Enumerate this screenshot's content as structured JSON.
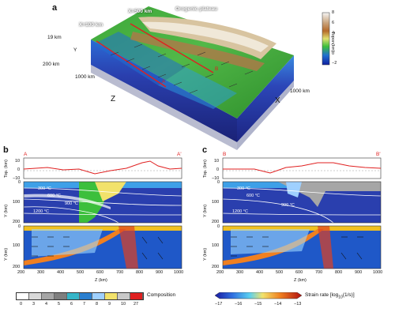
{
  "panel_a": {
    "label": "a",
    "plateau": "Orogenic plateau",
    "x100": "X=100 km",
    "x500": "X=500 km",
    "dim_19": "19 km",
    "dim_y": "Y",
    "dim_200": "200 km",
    "dim_1000a": "1000 km",
    "dim_1000b": "1000 km",
    "axis_z": "Z",
    "axis_x": "X",
    "mark_a": "A",
    "mark_b": "B",
    "colorbar": {
      "title": "Topo. (km)",
      "ticks": [
        "8",
        "6",
        "4",
        "2",
        "0",
        "−2"
      ],
      "colors": [
        "#f5f5f5",
        "#c8a27a",
        "#b56a2a",
        "#e0e070",
        "#3cbf3c",
        "#1f6fd0",
        "#1020a0"
      ]
    }
  },
  "panel_b": {
    "label": "b",
    "sec_start": "A",
    "sec_end": "A'",
    "topo_ylabel": "Top. (km)",
    "topo_ticks": [
      "10",
      "0",
      "−10"
    ],
    "y_label": "Y (km)",
    "y_ticks": [
      "0",
      "100",
      "200"
    ],
    "iso": [
      "300 °C",
      "600 °C",
      "900 °C",
      "1200 °C"
    ],
    "z_label": "Z (km)",
    "z_ticks": [
      "200",
      "300",
      "400",
      "500",
      "600",
      "700",
      "800",
      "900",
      "1000"
    ]
  },
  "panel_c": {
    "label": "c",
    "sec_start": "B",
    "sec_end": "B'",
    "topo_ylabel": "Top. (km)",
    "topo_ticks": [
      "10",
      "0",
      "−10"
    ],
    "y_label": "Y (km)",
    "y_ticks": [
      "0",
      "100",
      "200"
    ],
    "iso": [
      "300 °C",
      "600 °C",
      "900 °C",
      "1200 °C"
    ],
    "z_label": "Z (km)",
    "z_ticks": [
      "200",
      "300",
      "400",
      "500",
      "600",
      "700",
      "800",
      "900",
      "1000"
    ]
  },
  "composition_legend": {
    "title": "Composition",
    "ticks": [
      "0",
      "3",
      "4",
      "5",
      "6",
      "7",
      "8",
      "9",
      "10",
      "27"
    ],
    "colors": [
      "#ffffff",
      "#d9d9d9",
      "#a6a6a6",
      "#7f7f7f",
      "#35b5c8",
      "#2a7fd0",
      "#9fd0ff",
      "#f2e26b",
      "#c9c9c9",
      "#e02020"
    ]
  },
  "strain_legend": {
    "title": "Strain rate [log",
    "title_sub": "10",
    "title_end": "(1/s)]",
    "ticks": [
      "−17",
      "−16",
      "−15",
      "−14",
      "−13"
    ]
  }
}
